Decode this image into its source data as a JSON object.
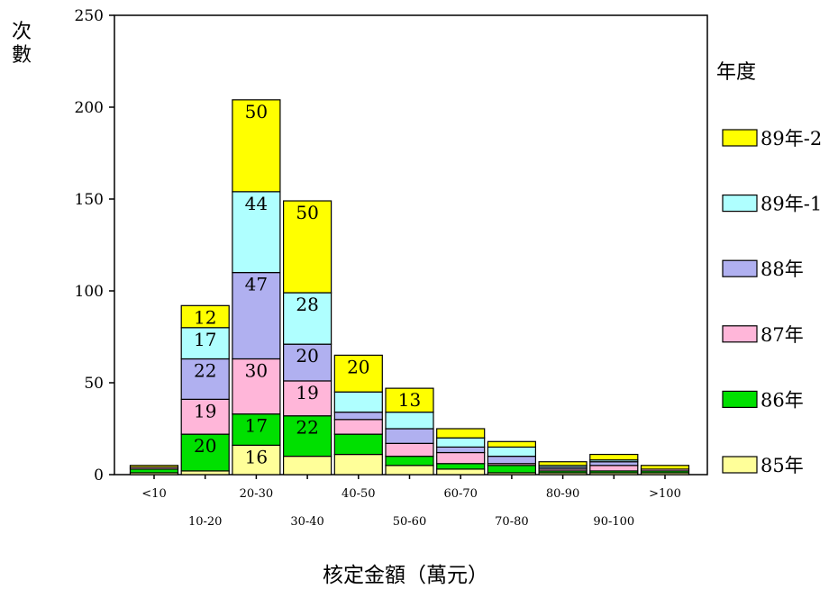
{
  "chart_data": {
    "type": "bar",
    "stacked": true,
    "categories": [
      "<10",
      "10-20",
      "20-30",
      "30-40",
      "40-50",
      "50-60",
      "60-70",
      "70-80",
      "80-90",
      "90-100",
      ">100"
    ],
    "xlabel": "核定金額（萬元）",
    "ylabel": "次數",
    "ylim": [
      0,
      250
    ],
    "yticks": [
      0,
      50,
      100,
      150,
      200,
      250
    ],
    "legend_title": "年度",
    "legend_position": "right",
    "grid": false,
    "series": [
      {
        "name": "85年",
        "color": "#FFFF99",
        "values": [
          1,
          2,
          16,
          10,
          11,
          5,
          3,
          1,
          1,
          1,
          1
        ]
      },
      {
        "name": "86年",
        "color": "#00E000",
        "values": [
          2,
          20,
          17,
          22,
          11,
          5,
          3,
          4,
          1,
          1,
          1
        ]
      },
      {
        "name": "87年",
        "color": "#FFB6D9",
        "values": [
          1,
          19,
          30,
          19,
          8,
          7,
          6,
          1,
          1,
          3,
          1
        ]
      },
      {
        "name": "88年",
        "color": "#B0B0F0",
        "values": [
          0,
          22,
          47,
          20,
          4,
          8,
          3,
          4,
          1,
          2,
          0
        ]
      },
      {
        "name": "89年-1",
        "color": "#AFFFFF",
        "values": [
          0,
          17,
          44,
          28,
          11,
          9,
          5,
          5,
          1,
          1,
          0
        ]
      },
      {
        "name": "89年-2",
        "color": "#FFFF00",
        "values": [
          1,
          12,
          50,
          50,
          20,
          13,
          5,
          3,
          2,
          3,
          2
        ]
      }
    ],
    "data_labels": [
      {
        "category": "10-20",
        "series": "86年",
        "text": "20"
      },
      {
        "category": "10-20",
        "series": "87年",
        "text": "19"
      },
      {
        "category": "10-20",
        "series": "88年",
        "text": "22"
      },
      {
        "category": "10-20",
        "series": "89年-1",
        "text": "17"
      },
      {
        "category": "10-20",
        "series": "89年-2",
        "text": "12"
      },
      {
        "category": "20-30",
        "series": "85年",
        "text": "16"
      },
      {
        "category": "20-30",
        "series": "86年",
        "text": "17"
      },
      {
        "category": "20-30",
        "series": "87年",
        "text": "30"
      },
      {
        "category": "20-30",
        "series": "88年",
        "text": "47"
      },
      {
        "category": "20-30",
        "series": "89年-1",
        "text": "44"
      },
      {
        "category": "20-30",
        "series": "89年-2",
        "text": "50"
      },
      {
        "category": "30-40",
        "series": "86年",
        "text": "22"
      },
      {
        "category": "30-40",
        "series": "87年",
        "text": "19"
      },
      {
        "category": "30-40",
        "series": "88年",
        "text": "20"
      },
      {
        "category": "30-40",
        "series": "89年-1",
        "text": "28"
      },
      {
        "category": "30-40",
        "series": "89年-2",
        "text": "50"
      },
      {
        "category": "40-50",
        "series": "89年-2",
        "text": "20"
      },
      {
        "category": "50-60",
        "series": "89年-2",
        "text": "13"
      }
    ]
  }
}
